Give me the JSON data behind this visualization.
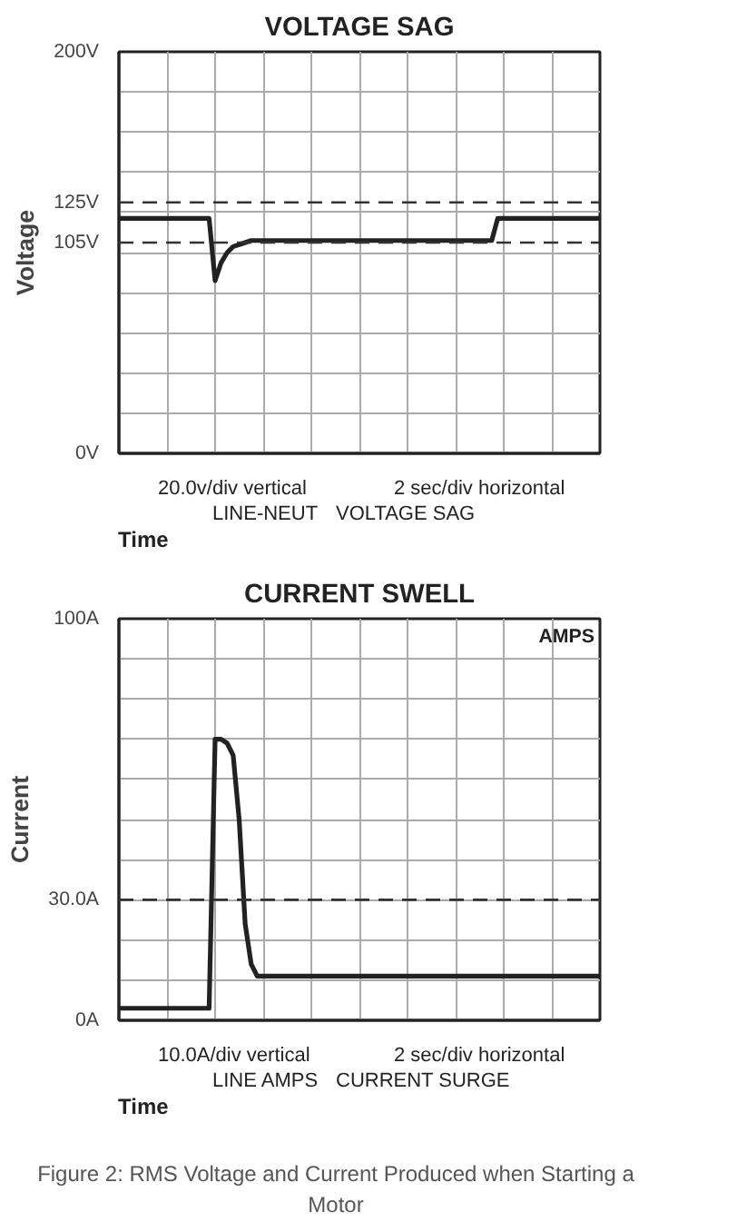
{
  "chart_data": [
    {
      "type": "line",
      "title": "VOLTAGE SAG",
      "xlabel": "Time",
      "ylabel": "Voltage",
      "categories": [
        null,
        null,
        null,
        null,
        null,
        null,
        null,
        null,
        null,
        null,
        null,
        null,
        null,
        null,
        null,
        null,
        null,
        null,
        null,
        null,
        null,
        null,
        null,
        null,
        null,
        null,
        null,
        null,
        null,
        null,
        null,
        null,
        null,
        null,
        null,
        null,
        null,
        null,
        null,
        null,
        null,
        null,
        null,
        null,
        null,
        null,
        null,
        null,
        null,
        null,
        null,
        null,
        null,
        null,
        null,
        null,
        null,
        null,
        null,
        null,
        null,
        null,
        null,
        null,
        null,
        null,
        null,
        null,
        null,
        null,
        null,
        null,
        null,
        null,
        null,
        null,
        null,
        null,
        null,
        null,
        null
      ],
      "series": [
        {
          "color": "#222222",
          "values": [
            117,
            117,
            117,
            117,
            117,
            117,
            117,
            117,
            117,
            117,
            117,
            117,
            117,
            117,
            117,
            117,
            86,
            95,
            100,
            103,
            104,
            105,
            106,
            106,
            106,
            106,
            106,
            106,
            106,
            106,
            106,
            106,
            106,
            106,
            106,
            106,
            106,
            106,
            106,
            106,
            106,
            106,
            106,
            106,
            106,
            106,
            106,
            106,
            106,
            106,
            106,
            106,
            106,
            106,
            106,
            106,
            106,
            106,
            106,
            106,
            106,
            106,
            106,
            117,
            117,
            117,
            117,
            117,
            117,
            117,
            117,
            117,
            117,
            117,
            117,
            117,
            117,
            117,
            117,
            117,
            117
          ]
        }
      ],
      "ylim": [
        0,
        200
      ],
      "yticks": [
        {
          "value": 0,
          "label": "0V"
        },
        {
          "value": 105,
          "label": "105V"
        },
        {
          "value": 125,
          "label": "125V"
        },
        {
          "value": 200,
          "label": "200V"
        }
      ],
      "grid": true,
      "tick_labels": "y",
      "line_style": "solid",
      "ref_lines": [
        {
          "axis": "y",
          "value": 125,
          "color": "#333333",
          "line_style": "dashed"
        },
        {
          "axis": "y",
          "value": 105,
          "color": "#333333",
          "line_style": "dashed"
        }
      ],
      "annotations": [
        "20.0v/div vertical",
        "2 sec/div horizontal",
        "LINE-NEUT",
        "VOLTAGE SAG"
      ]
    },
    {
      "type": "line",
      "title": "CURRENT SWELL",
      "xlabel": "Time",
      "ylabel": "Current",
      "categories": [
        null,
        null,
        null,
        null,
        null,
        null,
        null,
        null,
        null,
        null,
        null,
        null,
        null,
        null,
        null,
        null,
        null,
        null,
        null,
        null,
        null,
        null,
        null,
        null,
        null,
        null,
        null,
        null,
        null,
        null,
        null,
        null,
        null,
        null,
        null,
        null,
        null,
        null,
        null,
        null,
        null,
        null,
        null,
        null,
        null,
        null,
        null,
        null,
        null,
        null,
        null,
        null,
        null,
        null,
        null,
        null,
        null,
        null,
        null,
        null,
        null,
        null,
        null,
        null,
        null,
        null,
        null,
        null,
        null,
        null,
        null,
        null,
        null,
        null,
        null,
        null,
        null,
        null,
        null,
        null,
        null
      ],
      "series": [
        {
          "color": "#222222",
          "values": [
            3,
            3,
            3,
            3,
            3,
            3,
            3,
            3,
            3,
            3,
            3,
            3,
            3,
            3,
            3,
            3,
            70,
            70,
            69,
            66,
            50,
            24,
            14,
            11,
            11,
            11,
            11,
            11,
            11,
            11,
            11,
            11,
            11,
            11,
            11,
            11,
            11,
            11,
            11,
            11,
            11,
            11,
            11,
            11,
            11,
            11,
            11,
            11,
            11,
            11,
            11,
            11,
            11,
            11,
            11,
            11,
            11,
            11,
            11,
            11,
            11,
            11,
            11,
            11,
            11,
            11,
            11,
            11,
            11,
            11,
            11,
            11,
            11,
            11,
            11,
            11,
            11,
            11,
            11,
            11,
            11
          ]
        }
      ],
      "ylim": [
        0,
        100
      ],
      "yticks": [
        {
          "value": 0,
          "label": "0A"
        },
        {
          "value": 30,
          "label": "30.0A"
        },
        {
          "value": 100,
          "label": "100A"
        }
      ],
      "grid": true,
      "tick_labels": "y",
      "line_style": "solid",
      "ref_lines": [
        {
          "axis": "y",
          "value": 30,
          "color": "#333333",
          "line_style": "dashed"
        }
      ],
      "annotations": [
        "10.0A/div vertical",
        "2 sec/div horizontal",
        "LINE AMPS",
        "CURRENT SURGE",
        "AMPS",
        "Figure 2: RMS Voltage and Current Produced when Starting a Motor"
      ]
    }
  ]
}
